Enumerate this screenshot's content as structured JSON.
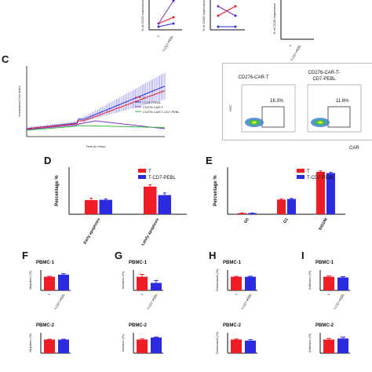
{
  "colors": {
    "red": "#ee1c25",
    "blue": "#2b2be0",
    "purple": "#7b2fbf",
    "green": "#36b83a",
    "axis": "#111111"
  },
  "top": {
    "panel1": {
      "ylabel": "% of CD25 expression",
      "xlabels": [
        "T",
        "T-CD7-PEBL"
      ]
    },
    "panel2": {
      "ylabel": "% of CD69 expression"
    },
    "panel3": {
      "ylabel": "% of CD45 expression",
      "xlabels": [
        "T",
        "T-CD7-PEBL"
      ]
    }
  },
  "panelC": {
    "label": "C",
    "ylabel": "Normalized Cell Index",
    "xlabel": "Time (in Hour)",
    "legend": [
      "T",
      "T-CD7-PEBL",
      "CD276-CAR-T",
      "CD276-CAR-T-CD7-PEBL"
    ],
    "flow": {
      "sample1": "CD276-CAR-T",
      "sample2_line1": "CD276-CAR-T-",
      "sample2_line2": "CD7-PEBL",
      "pct1": "16.3%",
      "pct2": "11.6%",
      "xaxis": "CAR",
      "yaxis": "SSC"
    }
  },
  "panelD": {
    "label": "D",
    "chart_data": {
      "type": "bar",
      "categories": [
        "Early apoptosis",
        "Lately apoptosis"
      ],
      "series": [
        {
          "name": "T",
          "values": [
            4.5,
            8.8
          ],
          "err": [
            0.6,
            0.6
          ]
        },
        {
          "name": "T-CD7-PEBL",
          "values": [
            4.6,
            6.1
          ],
          "err": [
            0.3,
            0.7
          ]
        }
      ],
      "ylabel": "Percentage %",
      "ylim": [
        0,
        15
      ]
    }
  },
  "panelE": {
    "label": "E",
    "chart_data": {
      "type": "bar",
      "categories": [
        "G0",
        "G1",
        "S/G2/M"
      ],
      "series": [
        {
          "name": "T",
          "values": [
            2,
            25,
            72
          ],
          "err": [
            0.3,
            1.2,
            1.5
          ]
        },
        {
          "name": "T-CD7-PEBL",
          "values": [
            2,
            26,
            70
          ],
          "err": [
            0.3,
            1.0,
            1.2
          ]
        }
      ],
      "ylabel": "Percentage %",
      "ylim": [
        0,
        80
      ]
    }
  },
  "small_panels": [
    {
      "label": "F",
      "title1": "PBMC-1",
      "title2": "PBMC-2",
      "ylabel": "Migration (%)",
      "chart_data": {
        "type": "bar",
        "categories": [
          "T",
          "T-CD7-PEBL"
        ],
        "values_top": [
          100,
          115
        ],
        "err_top": [
          4,
          8
        ],
        "values_bottom": [
          100,
          100
        ],
        "err_bottom": [
          3,
          3
        ],
        "ylim": [
          0,
          150
        ]
      }
    },
    {
      "label": "G",
      "title1": "PBMC-1",
      "title2": "PBMC-2",
      "ylabel": "Invasion (%)",
      "chart_data": {
        "type": "bar",
        "categories": [
          "T",
          "T-CD7-PEBL"
        ],
        "values_top": [
          100,
          55
        ],
        "err_top": [
          18,
          18
        ],
        "values_bottom": [
          100,
          115
        ],
        "err_bottom": [
          5,
          4
        ],
        "ylim": [
          0,
          150
        ]
      }
    },
    {
      "label": "H",
      "title1": "PBMC-1",
      "title2": "PBMC-2",
      "ylabel": "Chemotaxis (%)",
      "chart_data": {
        "type": "bar",
        "categories": [
          "T",
          "T-CD7-PEBL"
        ],
        "values_top": [
          100,
          100
        ],
        "err_top": [
          3,
          4
        ],
        "values_bottom": [
          100,
          92
        ],
        "err_bottom": [
          4,
          8
        ],
        "ylim": [
          0,
          150
        ]
      }
    },
    {
      "label": "I",
      "title1": "PBMC-1",
      "title2": "PBMC-2",
      "ylabel": "Adhesion (%)",
      "chart_data": {
        "type": "bar",
        "categories": [
          "T",
          "T-CD7-PEBL"
        ],
        "values_top": [
          100,
          95
        ],
        "err_top": [
          6,
          6
        ],
        "values_bottom": [
          100,
          108
        ],
        "err_bottom": [
          8,
          10
        ],
        "ylim": [
          0,
          150
        ]
      }
    }
  ]
}
